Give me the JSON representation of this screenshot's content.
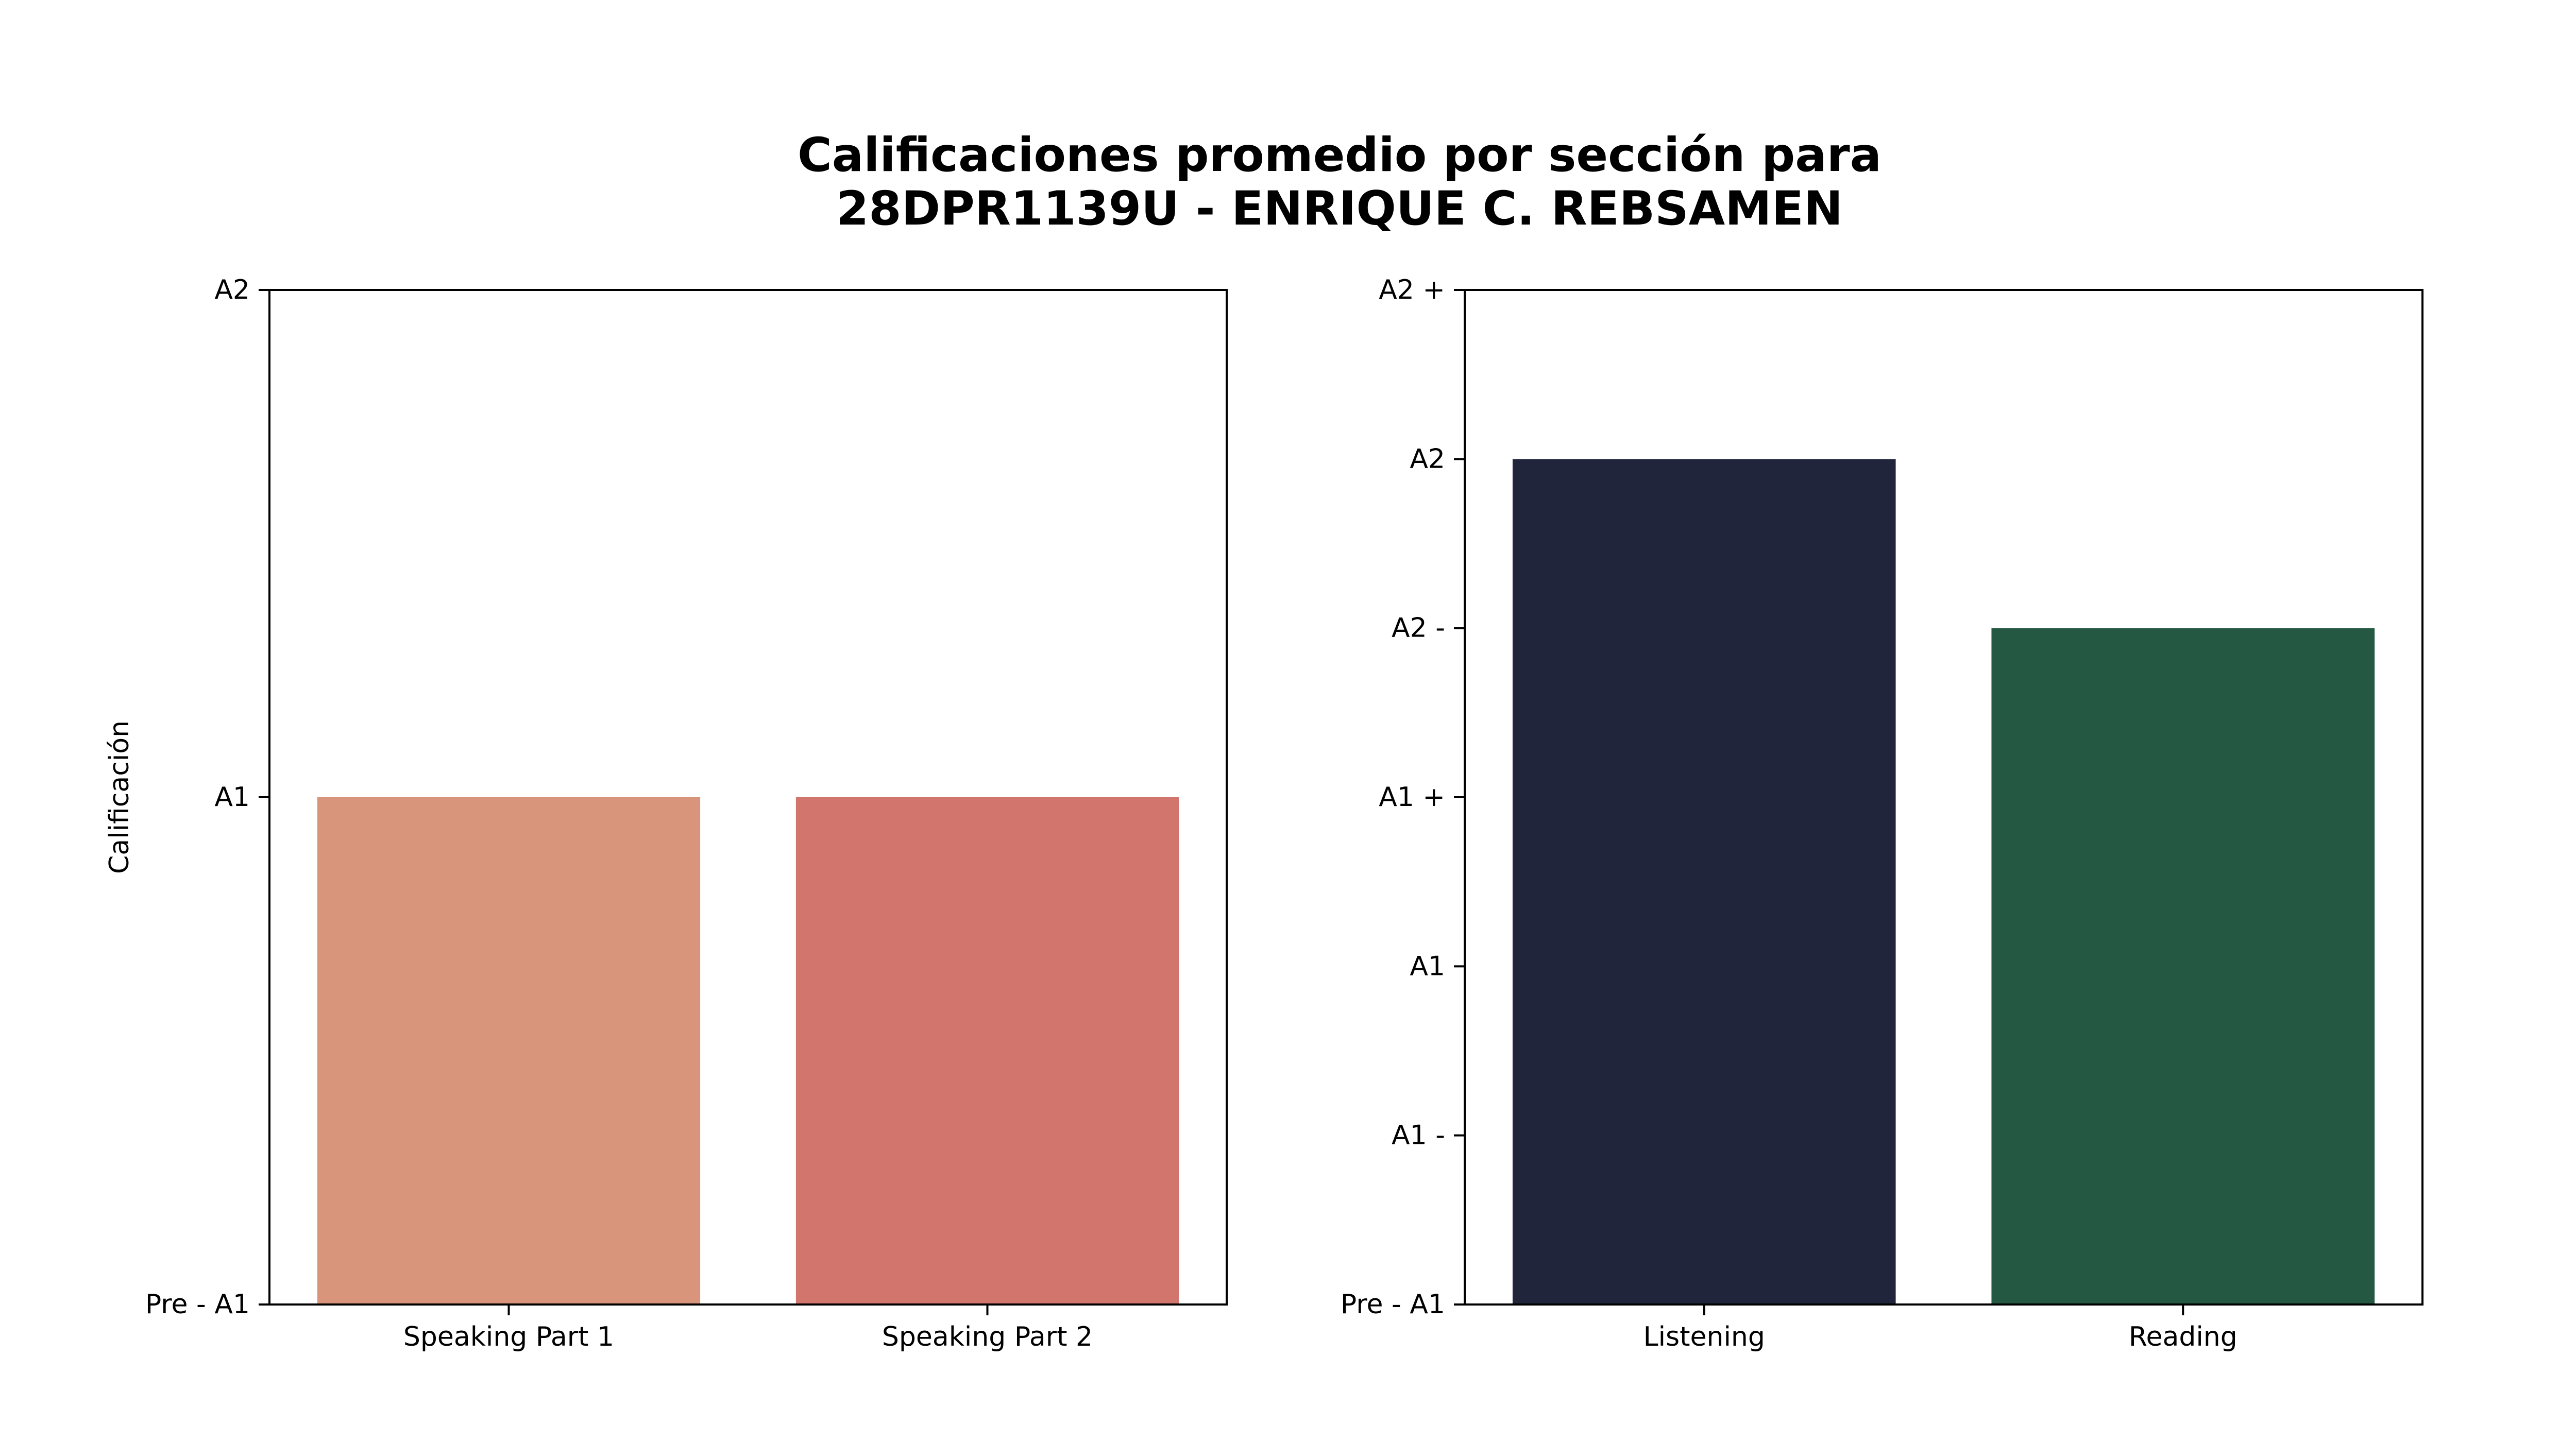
{
  "title_lines": [
    "Calificaciones promedio por sección para",
    "28DPR1139U - ENRIQUE C. REBSAMEN"
  ],
  "chart_data": [
    {
      "type": "bar",
      "ylabel": "Calificación",
      "xlabel": "",
      "categories": [
        "Speaking Part 1",
        "Speaking Part 2"
      ],
      "values": [
        1,
        1
      ],
      "colors": [
        "#d9957c",
        "#d1756d"
      ],
      "y_ticks": [
        {
          "value": 0,
          "label": "Pre - A1"
        },
        {
          "value": 1,
          "label": "A1"
        },
        {
          "value": 2,
          "label": "A2"
        }
      ],
      "ylim": [
        0,
        2
      ],
      "grid": false
    },
    {
      "type": "bar",
      "ylabel": "",
      "xlabel": "",
      "categories": [
        "Listening",
        "Reading"
      ],
      "values": [
        5,
        4
      ],
      "colors": [
        "#20253b",
        "#245843"
      ],
      "y_ticks": [
        {
          "value": 0,
          "label": "Pre - A1"
        },
        {
          "value": 1,
          "label": "A1 -"
        },
        {
          "value": 2,
          "label": "A1"
        },
        {
          "value": 3,
          "label": "A1 +"
        },
        {
          "value": 4,
          "label": "A2 -"
        },
        {
          "value": 5,
          "label": "A2"
        },
        {
          "value": 6,
          "label": "A2 +"
        }
      ],
      "ylim": [
        0,
        6
      ],
      "grid": false
    }
  ]
}
